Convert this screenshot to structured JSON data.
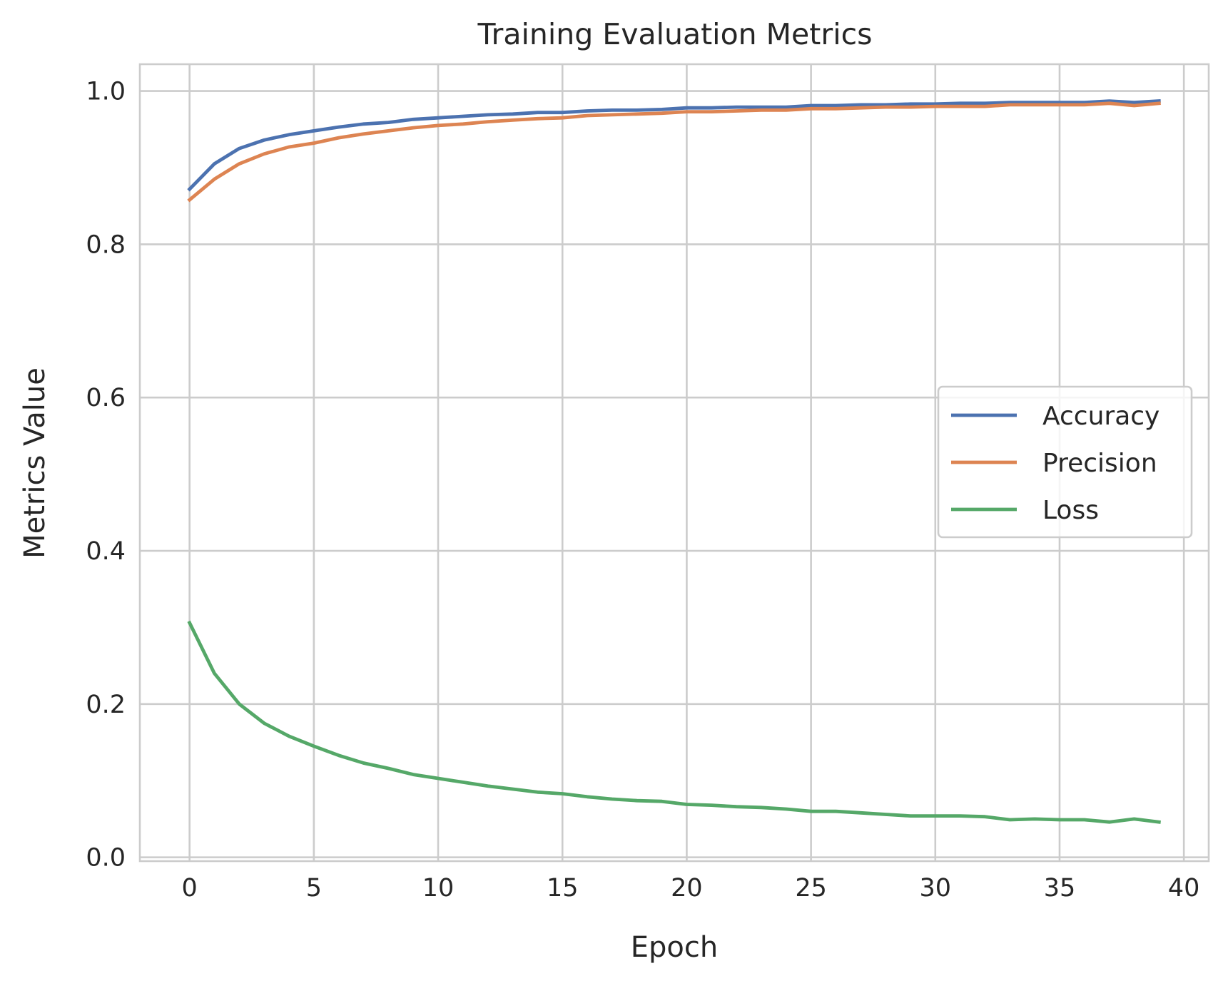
{
  "chart_data": {
    "type": "line",
    "title": "Training Evaluation Metrics",
    "xlabel": "Epoch",
    "ylabel": "Metrics Value",
    "xlim": [
      -2,
      41
    ],
    "ylim": [
      -0.005,
      1.035
    ],
    "xticks": [
      0,
      5,
      10,
      15,
      20,
      25,
      30,
      35,
      40
    ],
    "xtick_labels": [
      "0",
      "5",
      "10",
      "15",
      "20",
      "25",
      "30",
      "35",
      "40"
    ],
    "yticks": [
      0.0,
      0.2,
      0.4,
      0.6,
      0.8,
      1.0
    ],
    "ytick_labels": [
      "0.0",
      "0.2",
      "0.4",
      "0.6",
      "0.8",
      "1.0"
    ],
    "grid": true,
    "legend_position": "center-right",
    "x": [
      0,
      1,
      2,
      3,
      4,
      5,
      6,
      7,
      8,
      9,
      10,
      11,
      12,
      13,
      14,
      15,
      16,
      17,
      18,
      19,
      20,
      21,
      22,
      23,
      24,
      25,
      26,
      27,
      28,
      29,
      30,
      31,
      32,
      33,
      34,
      35,
      36,
      37,
      38,
      39
    ],
    "series": [
      {
        "name": "Accuracy",
        "color": "#4c72b0",
        "values": [
          0.872,
          0.905,
          0.925,
          0.936,
          0.943,
          0.948,
          0.953,
          0.957,
          0.959,
          0.963,
          0.965,
          0.967,
          0.969,
          0.97,
          0.972,
          0.972,
          0.974,
          0.975,
          0.975,
          0.976,
          0.978,
          0.978,
          0.979,
          0.979,
          0.979,
          0.981,
          0.981,
          0.982,
          0.982,
          0.983,
          0.983,
          0.984,
          0.984,
          0.985,
          0.985,
          0.985,
          0.985,
          0.987,
          0.985,
          0.987
        ]
      },
      {
        "name": "Precision",
        "color": "#dd8452",
        "values": [
          0.858,
          0.885,
          0.905,
          0.918,
          0.927,
          0.932,
          0.939,
          0.944,
          0.948,
          0.952,
          0.955,
          0.957,
          0.96,
          0.962,
          0.964,
          0.965,
          0.968,
          0.969,
          0.97,
          0.971,
          0.973,
          0.973,
          0.974,
          0.975,
          0.975,
          0.977,
          0.977,
          0.978,
          0.979,
          0.979,
          0.98,
          0.98,
          0.98,
          0.982,
          0.982,
          0.982,
          0.982,
          0.984,
          0.981,
          0.984
        ]
      },
      {
        "name": "Loss",
        "color": "#55a868",
        "values": [
          0.306,
          0.24,
          0.2,
          0.175,
          0.158,
          0.145,
          0.133,
          0.123,
          0.116,
          0.108,
          0.103,
          0.098,
          0.093,
          0.089,
          0.085,
          0.083,
          0.079,
          0.076,
          0.074,
          0.073,
          0.069,
          0.068,
          0.066,
          0.065,
          0.063,
          0.06,
          0.06,
          0.058,
          0.056,
          0.054,
          0.054,
          0.054,
          0.053,
          0.049,
          0.05,
          0.049,
          0.049,
          0.046,
          0.05,
          0.046
        ]
      }
    ]
  }
}
